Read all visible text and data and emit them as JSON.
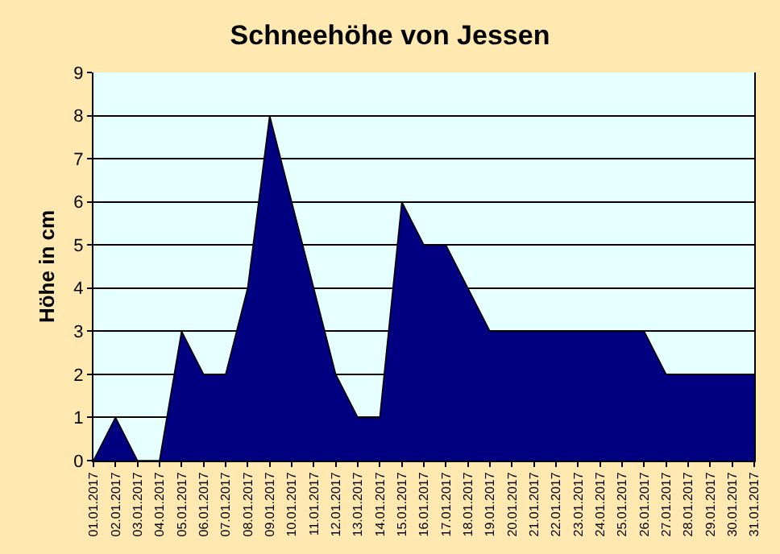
{
  "chart_data": {
    "type": "area",
    "title": "Schneehöhe von Jessen",
    "ylabel": "Höhe in cm",
    "categories": [
      "01.01.2017",
      "02.01.2017",
      "03.01.2017",
      "04.01.2017",
      "05.01.2017",
      "06.01.2017",
      "07.01.2017",
      "08.01.2017",
      "09.01.2017",
      "10.01.2017",
      "11.01.2017",
      "12.01.2017",
      "13.01.2017",
      "14.01.2017",
      "15.01.2017",
      "16.01.2017",
      "17.01.2017",
      "18.01.2017",
      "19.01.2017",
      "20.01.2017",
      "21.01.2017",
      "22.01.2017",
      "23.01.2017",
      "24.01.2017",
      "25.01.2017",
      "26.01.2017",
      "27.01.2017",
      "28.01.2017",
      "29.01.2017",
      "30.01.2017",
      "31.01.2017"
    ],
    "series": [
      {
        "color": "#000080",
        "values": [
          0,
          1,
          0,
          0,
          3,
          2,
          2,
          4,
          8,
          6,
          4,
          2,
          1,
          1,
          6,
          5,
          5,
          4,
          3,
          3,
          3,
          3,
          3,
          3,
          3,
          3,
          2,
          2,
          2,
          2,
          2
        ]
      }
    ],
    "ylim": [
      0,
      9
    ],
    "yticks": [
      0,
      1,
      2,
      3,
      4,
      5,
      6,
      7,
      8,
      9
    ],
    "grid": "y"
  }
}
